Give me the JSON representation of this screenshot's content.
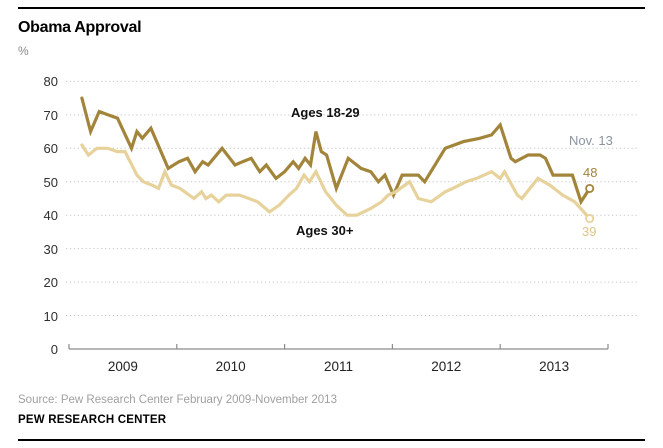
{
  "header": {
    "title": "Obama Approval",
    "unit_label": "%"
  },
  "colors": {
    "series_18_29": "#a2853a",
    "series_30_plus": "#e7d29b",
    "annotation_gray": "#8b95a0",
    "grid": "#c9c9c9",
    "axis": "#8c8c8c",
    "end_value_light_text": "#ddc584"
  },
  "footer": {
    "source": "Source: Pew Research Center February 2009-November 2013",
    "branding": "PEW RESEARCH CENTER"
  },
  "chart_data": {
    "type": "line",
    "title": "Obama Approval",
    "unit": "%",
    "grid": "dotted-horizontal",
    "x_axis": {
      "min": 2009,
      "max": 2014,
      "ticks": [
        2009,
        2010,
        2011,
        2012,
        2013,
        2014
      ],
      "labels": [
        "2009",
        "2010",
        "2011",
        "2012",
        "2013"
      ]
    },
    "y_axis": {
      "min": 0,
      "max": 80,
      "tick_step": 10,
      "tick_labels": [
        "0",
        "10",
        "20",
        "30",
        "40",
        "50",
        "60",
        "70",
        "80"
      ]
    },
    "annotations": {
      "end_date": "Nov. 13"
    },
    "series": [
      {
        "name": "Ages 18-29",
        "color": "#a2853a",
        "end_label": "48",
        "end_marker": "open-circle",
        "points": [
          [
            2009.12,
            75
          ],
          [
            2009.2,
            65
          ],
          [
            2009.28,
            71
          ],
          [
            2009.36,
            70
          ],
          [
            2009.45,
            69
          ],
          [
            2009.58,
            60
          ],
          [
            2009.63,
            65
          ],
          [
            2009.68,
            63
          ],
          [
            2009.76,
            66
          ],
          [
            2009.92,
            54
          ],
          [
            2010.02,
            56
          ],
          [
            2010.1,
            57
          ],
          [
            2010.17,
            53
          ],
          [
            2010.24,
            56
          ],
          [
            2010.29,
            55
          ],
          [
            2010.42,
            60
          ],
          [
            2010.54,
            55
          ],
          [
            2010.61,
            56
          ],
          [
            2010.69,
            57
          ],
          [
            2010.77,
            53
          ],
          [
            2010.83,
            55
          ],
          [
            2010.92,
            51
          ],
          [
            2011.0,
            53
          ],
          [
            2011.08,
            56
          ],
          [
            2011.13,
            54
          ],
          [
            2011.19,
            57
          ],
          [
            2011.24,
            55
          ],
          [
            2011.29,
            65
          ],
          [
            2011.34,
            59
          ],
          [
            2011.39,
            58
          ],
          [
            2011.48,
            48
          ],
          [
            2011.59,
            57
          ],
          [
            2011.71,
            54
          ],
          [
            2011.8,
            53
          ],
          [
            2011.87,
            50
          ],
          [
            2011.93,
            52
          ],
          [
            2012.01,
            46
          ],
          [
            2012.09,
            52
          ],
          [
            2012.17,
            52
          ],
          [
            2012.24,
            52
          ],
          [
            2012.3,
            50
          ],
          [
            2012.49,
            60
          ],
          [
            2012.66,
            62
          ],
          [
            2012.81,
            63
          ],
          [
            2012.92,
            64
          ],
          [
            2013.0,
            67
          ],
          [
            2013.1,
            57
          ],
          [
            2013.14,
            56
          ],
          [
            2013.26,
            58
          ],
          [
            2013.37,
            58
          ],
          [
            2013.42,
            57
          ],
          [
            2013.49,
            52
          ],
          [
            2013.67,
            52
          ],
          [
            2013.75,
            44
          ],
          [
            2013.83,
            48
          ]
        ]
      },
      {
        "name": "Ages 30+",
        "color": "#e7d29b",
        "end_label": "39",
        "end_marker": "open-circle",
        "points": [
          [
            2009.12,
            61
          ],
          [
            2009.18,
            58
          ],
          [
            2009.26,
            60
          ],
          [
            2009.36,
            60
          ],
          [
            2009.45,
            59
          ],
          [
            2009.52,
            59
          ],
          [
            2009.63,
            52
          ],
          [
            2009.69,
            50
          ],
          [
            2009.77,
            49
          ],
          [
            2009.83,
            48
          ],
          [
            2009.89,
            53
          ],
          [
            2009.95,
            49
          ],
          [
            2010.03,
            48
          ],
          [
            2010.16,
            45
          ],
          [
            2010.23,
            47
          ],
          [
            2010.27,
            45
          ],
          [
            2010.32,
            46
          ],
          [
            2010.39,
            44
          ],
          [
            2010.46,
            46
          ],
          [
            2010.58,
            46
          ],
          [
            2010.67,
            45
          ],
          [
            2010.75,
            44
          ],
          [
            2010.86,
            41
          ],
          [
            2010.95,
            43
          ],
          [
            2011.04,
            46
          ],
          [
            2011.11,
            48
          ],
          [
            2011.18,
            52
          ],
          [
            2011.23,
            50
          ],
          [
            2011.29,
            53
          ],
          [
            2011.38,
            47
          ],
          [
            2011.48,
            43
          ],
          [
            2011.58,
            40
          ],
          [
            2011.67,
            40
          ],
          [
            2011.8,
            42
          ],
          [
            2011.9,
            44
          ],
          [
            2011.96,
            46
          ],
          [
            2012.03,
            47
          ],
          [
            2012.16,
            50
          ],
          [
            2012.24,
            45
          ],
          [
            2012.36,
            44
          ],
          [
            2012.49,
            47
          ],
          [
            2012.56,
            48
          ],
          [
            2012.68,
            50
          ],
          [
            2012.78,
            51
          ],
          [
            2012.92,
            53
          ],
          [
            2013.0,
            51
          ],
          [
            2013.04,
            53
          ],
          [
            2013.16,
            46
          ],
          [
            2013.2,
            45
          ],
          [
            2013.35,
            51
          ],
          [
            2013.46,
            49
          ],
          [
            2013.58,
            46
          ],
          [
            2013.69,
            44
          ],
          [
            2013.83,
            39
          ]
        ]
      }
    ]
  }
}
